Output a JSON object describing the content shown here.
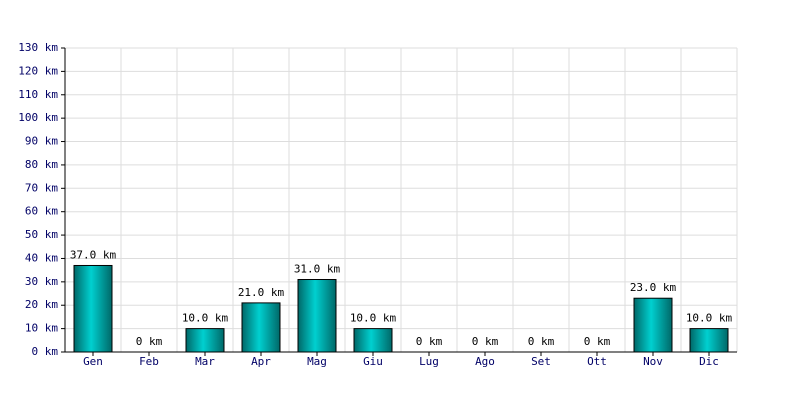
{
  "chart_data": {
    "type": "bar",
    "categories": [
      "Gen",
      "Feb",
      "Mar",
      "Apr",
      "Mag",
      "Giu",
      "Lug",
      "Ago",
      "Set",
      "Ott",
      "Nov",
      "Dic"
    ],
    "values": [
      37,
      0,
      10,
      21,
      31,
      10,
      0,
      0,
      0,
      0,
      23,
      10
    ],
    "value_labels": [
      "37.0 km",
      "0 km",
      "10.0 km",
      "21.0 km",
      "31.0 km",
      "10.0 km",
      "0 km",
      "0 km",
      "0 km",
      "0 km",
      "23.0 km",
      "10.0 km"
    ],
    "color": "#00d0d0",
    "ylim": [
      0,
      130
    ],
    "yticks": [
      {
        "value": 0,
        "label": "0 km"
      },
      {
        "value": 10,
        "label": "10 km"
      },
      {
        "value": 20,
        "label": "20 km"
      },
      {
        "value": 30,
        "label": "30 km"
      },
      {
        "value": 40,
        "label": "40 km"
      },
      {
        "value": 50,
        "label": "50 km"
      },
      {
        "value": 60,
        "label": "60 km"
      },
      {
        "value": 70,
        "label": "70 km"
      },
      {
        "value": 80,
        "label": "80 km"
      },
      {
        "value": 90,
        "label": "90 km"
      },
      {
        "value": 100,
        "label": "100 km"
      },
      {
        "value": 110,
        "label": "110 km"
      },
      {
        "value": 120,
        "label": "120 km"
      },
      {
        "value": 130,
        "label": "130 km"
      }
    ],
    "grid": true
  }
}
